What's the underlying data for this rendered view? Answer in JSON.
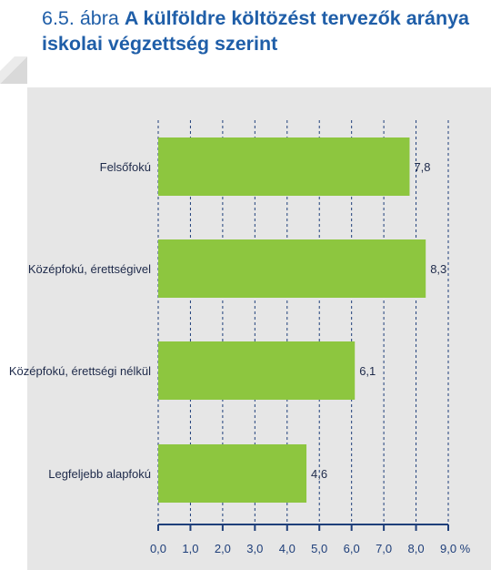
{
  "header": {
    "figure_number": "6.5. ábra",
    "title_bold": "A külföldre költözést tervezők aránya iskolai végzettség szerint"
  },
  "colors": {
    "title": "#1f5ea8",
    "bar": "#8dc63f",
    "axis": "#1f3f7a",
    "panel": "#e6e6e6"
  },
  "chart_data": {
    "type": "bar",
    "orientation": "horizontal",
    "title": "A külföldre költözést tervezők aránya iskolai végzettség szerint",
    "categories": [
      "Felsőfokú",
      "Középfokú, érettségivel",
      "Középfokú, érettségi nélkül",
      "Legfeljebb alapfokú"
    ],
    "values": [
      7.8,
      8.3,
      6.1,
      4.6
    ],
    "value_labels": [
      "7,8",
      "8,3",
      "6,1",
      "4,6"
    ],
    "xlim": [
      0,
      9
    ],
    "x_ticks": [
      0,
      1,
      2,
      3,
      4,
      5,
      6,
      7,
      8,
      9
    ],
    "x_tick_labels": [
      "0,0",
      "1,0",
      "2,0",
      "3,0",
      "4,0",
      "5,0",
      "6,0",
      "7,0",
      "8,0",
      "9,0 %"
    ],
    "grid": "vertical dashed",
    "legend": "none"
  }
}
